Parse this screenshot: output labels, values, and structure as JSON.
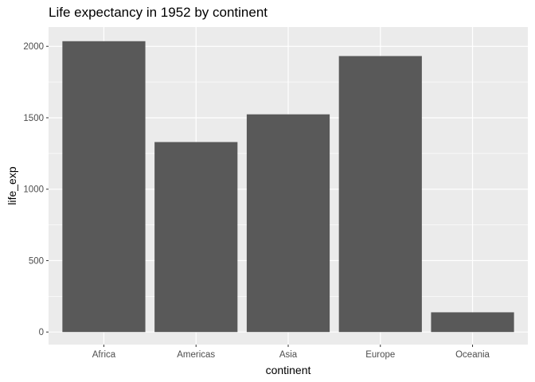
{
  "chart_data": {
    "type": "bar",
    "title": "Life expectancy in 1952 by continent",
    "xlabel": "continent",
    "ylabel": "life_exp",
    "categories": [
      "Africa",
      "Americas",
      "Asia",
      "Europe",
      "Oceania"
    ],
    "values": [
      2036,
      1330,
      1524,
      1932,
      138
    ],
    "ylim": [
      -88,
      2135
    ],
    "yticks": [
      0,
      500,
      1000,
      1500,
      2000
    ],
    "grid": true,
    "legend": "none",
    "colors": {
      "bar": "#595959",
      "panel": "#ebebeb",
      "grid": "#ffffff"
    }
  }
}
